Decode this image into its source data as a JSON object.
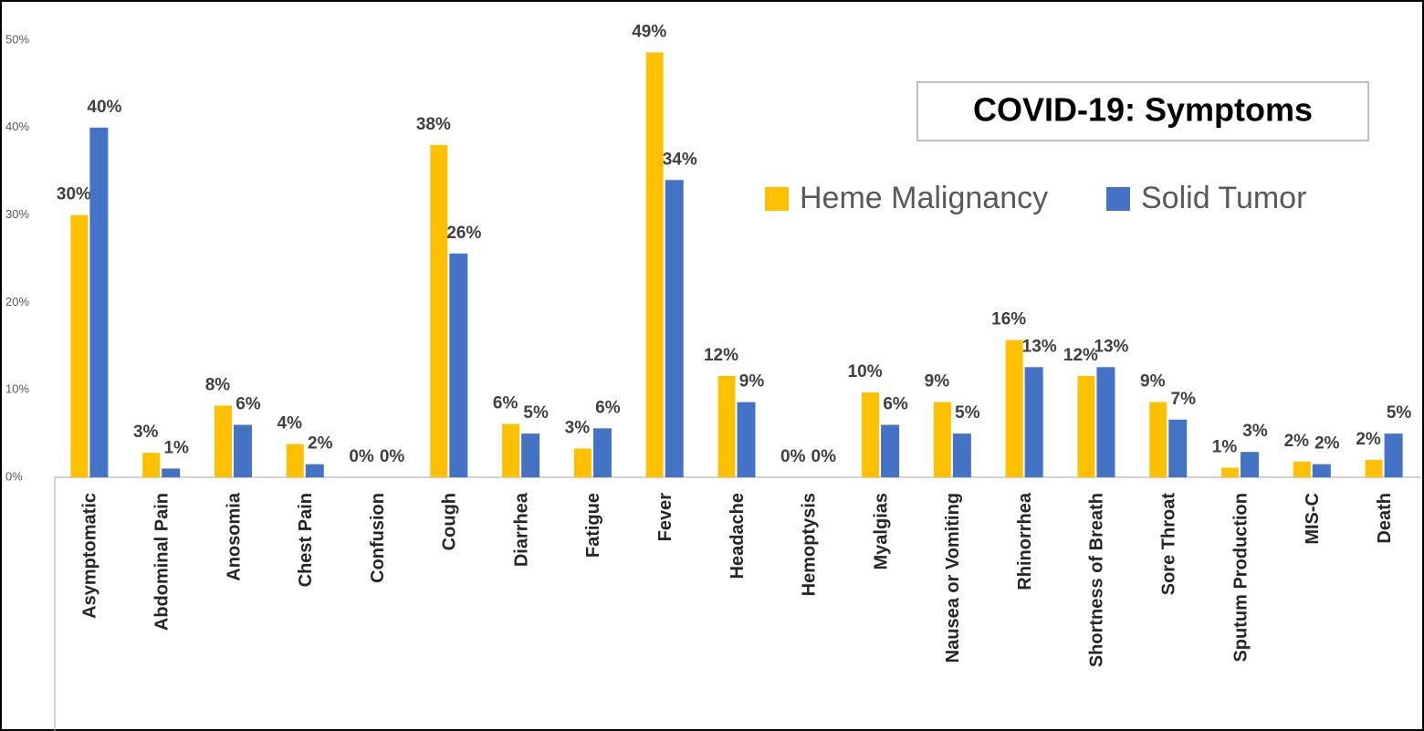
{
  "chart_data": {
    "type": "bar",
    "title": "COVID-19: Symptoms",
    "categories": [
      "Asymptomatic",
      "Abdominal Pain",
      "Anosomia",
      "Chest Pain",
      "Confusion",
      "Cough",
      "Diarrhea",
      "Fatigue",
      "Fever",
      "Headache",
      "Hemoptysis",
      "Myalgias",
      "Nausea or Vomiting",
      "Rhinorrhea",
      "Shortness of Breath",
      "Sore Throat",
      "Sputum Production",
      "MIS-C",
      "Death"
    ],
    "series": [
      {
        "name": "Heme Malignancy",
        "color": "#FFC000",
        "values": [
          30,
          2.8,
          8.2,
          3.8,
          0,
          38,
          6.1,
          3.3,
          48.6,
          11.6,
          0,
          9.7,
          8.6,
          15.7,
          11.6,
          8.6,
          1.1,
          1.8,
          2.0
        ],
        "value_labels": [
          "30%",
          "3%",
          "8%",
          "4%",
          "0%",
          "38%",
          "6%",
          "3%",
          "49%",
          "12%",
          "0%",
          "10%",
          "9%",
          "16%",
          "12%",
          "9%",
          "1%",
          "2%",
          "2%"
        ]
      },
      {
        "name": "Solid Tumor",
        "color": "#4472C4",
        "values": [
          40,
          1.0,
          6.0,
          1.5,
          0,
          25.6,
          5.0,
          5.6,
          34,
          8.6,
          0,
          6.0,
          5.0,
          12.6,
          12.6,
          6.6,
          2.9,
          1.5,
          5.0
        ],
        "value_labels": [
          "40%",
          "1%",
          "6%",
          "2%",
          "0%",
          "26%",
          "5%",
          "6%",
          "34%",
          "9%",
          "0%",
          "6%",
          "5%",
          "13%",
          "13%",
          "7%",
          "3%",
          "2%",
          "5%"
        ]
      }
    ],
    "ylim": [
      0,
      50
    ],
    "yticks": [
      {
        "value": 0,
        "label": "0%"
      },
      {
        "value": 10,
        "label": "10%"
      },
      {
        "value": 20,
        "label": "20%"
      },
      {
        "value": 30,
        "label": "30%"
      },
      {
        "value": 40,
        "label": "40%"
      },
      {
        "value": 50,
        "label": "50%"
      }
    ],
    "grid": false,
    "legend": "top-right"
  }
}
